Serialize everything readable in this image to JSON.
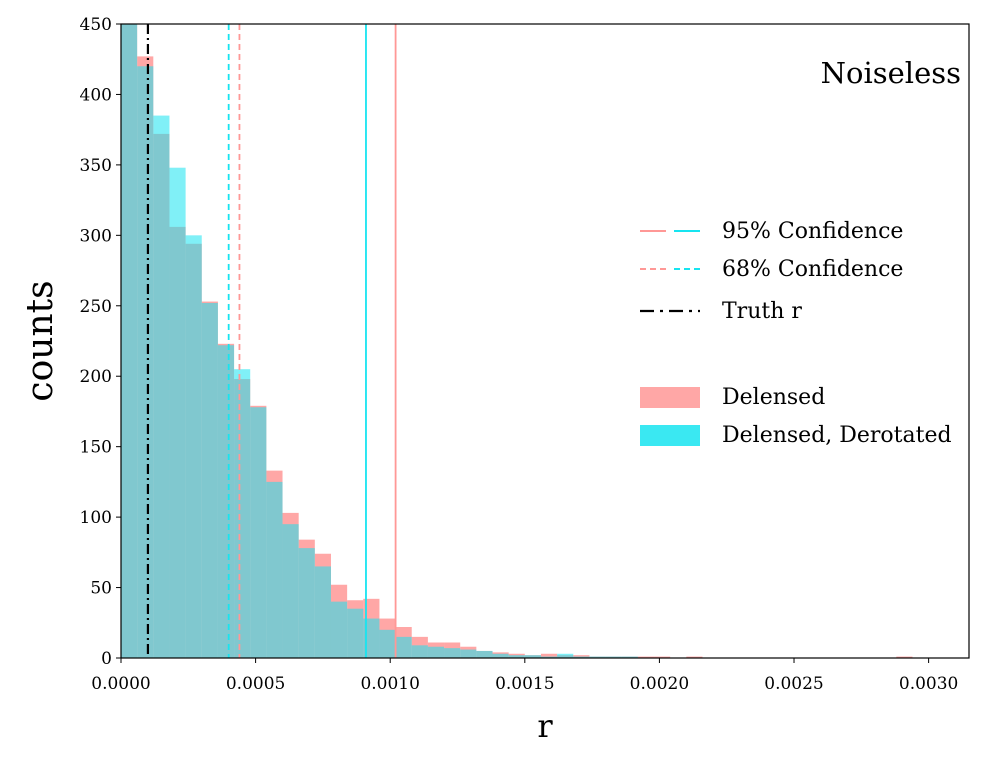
{
  "chart_data": {
    "type": "histogram",
    "annotation": "Noiseless",
    "xlabel": "r",
    "ylabel": "counts",
    "xlim": [
      0.0,
      0.00315
    ],
    "ylim": [
      0,
      450
    ],
    "x_ticks": [
      "0.0000",
      "0.0005",
      "0.0010",
      "0.0015",
      "0.0020",
      "0.0025",
      "0.0030"
    ],
    "x_tick_values": [
      0.0,
      0.0005,
      0.001,
      0.0015,
      0.002,
      0.0025,
      0.003
    ],
    "y_ticks": [
      "0",
      "50",
      "100",
      "150",
      "200",
      "250",
      "300",
      "350",
      "400",
      "450"
    ],
    "y_tick_values": [
      0,
      50,
      100,
      150,
      200,
      250,
      300,
      350,
      400,
      450
    ],
    "grid": false,
    "legend_position": "center-right",
    "bin_width": 6e-05,
    "series": [
      {
        "name": "Delensed",
        "color": "#ff9896",
        "bin_starts": [
          0.0,
          6e-05,
          0.00012,
          0.00018,
          0.00024,
          0.0003,
          0.00036,
          0.00042,
          0.00048,
          0.00054,
          0.0006,
          0.00066,
          0.00072,
          0.00078,
          0.00084,
          0.0009,
          0.00096,
          0.00102,
          0.00108,
          0.00114,
          0.0012,
          0.00126,
          0.00132,
          0.00138,
          0.00144,
          0.0015,
          0.00156,
          0.00162,
          0.00168,
          0.00174,
          0.0018,
          0.00186,
          0.00192,
          0.00198,
          0.00204,
          0.0021,
          0.00216,
          0.00222,
          0.00228,
          0.00234,
          0.0024,
          0.00246,
          0.00252,
          0.00258,
          0.00264,
          0.0027,
          0.00276,
          0.00282,
          0.00288,
          0.00294
        ],
        "counts": [
          450,
          427,
          372,
          306,
          294,
          253,
          223,
          198,
          179,
          133,
          103,
          84,
          74,
          52,
          41,
          42,
          28,
          22,
          15,
          11,
          11,
          8,
          5,
          4,
          3,
          2,
          3,
          2,
          2,
          1,
          1,
          1,
          1,
          1,
          0,
          1,
          0,
          0,
          0,
          0,
          0,
          0,
          0,
          0,
          0,
          0,
          0,
          0,
          1,
          0
        ]
      },
      {
        "name": "Delensed, Derotated",
        "color": "#17e4f0",
        "bin_starts": [
          0.0,
          6e-05,
          0.00012,
          0.00018,
          0.00024,
          0.0003,
          0.00036,
          0.00042,
          0.00048,
          0.00054,
          0.0006,
          0.00066,
          0.00072,
          0.00078,
          0.00084,
          0.0009,
          0.00096,
          0.00102,
          0.00108,
          0.00114,
          0.0012,
          0.00126,
          0.00132,
          0.00138,
          0.00144,
          0.0015,
          0.00156,
          0.00162,
          0.00168,
          0.00174,
          0.0018,
          0.00186,
          0.00192,
          0.00198,
          0.00204,
          0.0021,
          0.00216,
          0.00222,
          0.00228,
          0.00234,
          0.0024,
          0.00246,
          0.00252,
          0.00258,
          0.00264,
          0.0027,
          0.00276,
          0.00282,
          0.00288,
          0.00294
        ],
        "counts": [
          450,
          420,
          385,
          348,
          300,
          252,
          222,
          205,
          178,
          125,
          95,
          78,
          65,
          40,
          35,
          28,
          20,
          15,
          9,
          8,
          7,
          6,
          5,
          3,
          2,
          2,
          1,
          3,
          1,
          1,
          1,
          1,
          0,
          0,
          0,
          0,
          0,
          0,
          0,
          0,
          0,
          0,
          0,
          0,
          0,
          0,
          0,
          0,
          0,
          0
        ]
      }
    ],
    "vertical_lines": [
      {
        "label": "95% Confidence",
        "x": 0.00102,
        "color": "#ff9896",
        "style": "solid"
      },
      {
        "label": "95% Confidence",
        "x": 0.00091,
        "color": "#17e4f0",
        "style": "solid"
      },
      {
        "label": "68% Confidence",
        "x": 0.00044,
        "color": "#ff9896",
        "style": "dashed"
      },
      {
        "label": "68% Confidence",
        "x": 0.0004,
        "color": "#17e4f0",
        "style": "dashed"
      },
      {
        "label": "Truth r",
        "x": 0.0001,
        "color": "#000000",
        "style": "dashdot"
      }
    ],
    "legend": [
      {
        "label": "95% Confidence",
        "kind": "line-pair",
        "style": "solid"
      },
      {
        "label": "68% Confidence",
        "kind": "line-pair",
        "style": "dashed"
      },
      {
        "label": "Truth r",
        "kind": "line",
        "style": "dashdot",
        "color": "#000000"
      },
      {
        "label": "Delensed",
        "kind": "patch",
        "color": "#ff9896"
      },
      {
        "label": "Delensed, Derotated",
        "kind": "patch",
        "color": "#17e4f0"
      }
    ]
  }
}
